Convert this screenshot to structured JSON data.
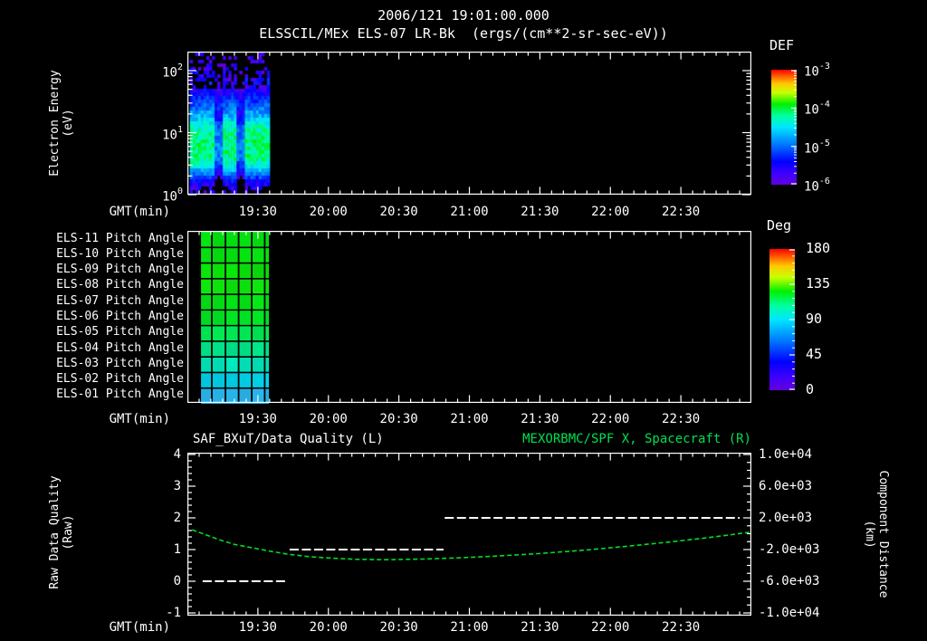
{
  "header": {
    "title": "2006/121 19:01:00.000",
    "subtitle": "ELSSCIL/MEx ELS-07 LR-Bk  (ergs/(cm**2-sr-sec-eV))"
  },
  "colors": {
    "background": "#000000",
    "foreground": "#ffffff",
    "title_green": "#00e050",
    "curve_green": "#00dd22",
    "rainbow_stops": [
      [
        0.0,
        "#6400dc"
      ],
      [
        0.1,
        "#3c00ff"
      ],
      [
        0.2,
        "#0000ff"
      ],
      [
        0.35,
        "#0078ff"
      ],
      [
        0.5,
        "#00e6ff"
      ],
      [
        0.6,
        "#00ffa0"
      ],
      [
        0.7,
        "#00f000"
      ],
      [
        0.8,
        "#c8ff00"
      ],
      [
        0.88,
        "#ffc800"
      ],
      [
        0.94,
        "#ff6400"
      ],
      [
        1.0,
        "#ff0000"
      ]
    ]
  },
  "time_axis": {
    "label": "GMT(min)",
    "start_time": "19:00",
    "end_time": "23:00",
    "major_labels": [
      "19:30",
      "20:00",
      "20:30",
      "21:00",
      "21:30",
      "22:00",
      "22:30"
    ],
    "major_minutes": [
      30,
      60,
      90,
      120,
      150,
      180,
      210
    ],
    "minor_step_min": 5,
    "total_minutes": 240
  },
  "chart_data": [
    {
      "type": "heatmap",
      "name": "electron-energy-spectrogram",
      "ylabel_lines": [
        "Electron Energy",
        "(eV)"
      ],
      "y_scale": "log",
      "y_ticks": [
        {
          "base": "10",
          "exp": "2",
          "logv": 2
        },
        {
          "base": "10",
          "exp": "1",
          "logv": 1
        },
        {
          "base": "10",
          "exp": "0",
          "logv": 0
        }
      ],
      "y_range_log": [
        0,
        2.3
      ],
      "colorbar": {
        "title": "DEF",
        "scale": "log",
        "tick_labels": [
          {
            "base": "10",
            "exp": "-3",
            "v": -3
          },
          {
            "base": "10",
            "exp": "-4",
            "v": -4
          },
          {
            "base": "10",
            "exp": "-5",
            "v": -5
          },
          {
            "base": "10",
            "exp": "-6",
            "v": -6
          }
        ],
        "range_log": [
          -6,
          -3
        ]
      },
      "data_coverage_min": [
        1,
        35
      ],
      "flux_profile_logE_logF": [
        [
          0.0,
          -6.2
        ],
        [
          0.15,
          -5.9
        ],
        [
          0.3,
          -5.3
        ],
        [
          0.45,
          -4.6
        ],
        [
          0.6,
          -4.25
        ],
        [
          0.9,
          -4.25
        ],
        [
          1.1,
          -4.45
        ],
        [
          1.3,
          -4.95
        ],
        [
          1.5,
          -5.4
        ],
        [
          1.7,
          -5.8
        ],
        [
          1.95,
          -6.1
        ],
        [
          2.3,
          -6.25
        ]
      ],
      "dropout_gaps_min": [
        [
          11.5,
          14.5
        ],
        [
          21.5,
          24.5
        ]
      ],
      "noise_amp": 0.5
    },
    {
      "type": "heatmap",
      "name": "pitch-angle-rows",
      "rows": [
        {
          "label": "ELS-11 Pitch Angle",
          "approx_deg": 102,
          "color": "#04df10"
        },
        {
          "label": "ELS-10 Pitch Angle",
          "approx_deg": 101,
          "color": "#04e010"
        },
        {
          "label": "ELS-09 Pitch Angle",
          "approx_deg": 100,
          "color": "#0ade0a"
        },
        {
          "label": "ELS-08 Pitch Angle",
          "approx_deg": 100,
          "color": "#0ce00c"
        },
        {
          "label": "ELS-07 Pitch Angle",
          "approx_deg": 99,
          "color": "#04e014"
        },
        {
          "label": "ELS-06 Pitch Angle",
          "approx_deg": 96,
          "color": "#00e122"
        },
        {
          "label": "ELS-05 Pitch Angle",
          "approx_deg": 90,
          "color": "#00e251"
        },
        {
          "label": "ELS-04 Pitch Angle",
          "approx_deg": 84,
          "color": "#00e287"
        },
        {
          "label": "ELS-03 Pitch Angle",
          "approx_deg": 75,
          "color": "#00e3b8"
        },
        {
          "label": "ELS-02 Pitch Angle",
          "approx_deg": 65,
          "color": "#00cde4"
        },
        {
          "label": "ELS-01 Pitch Angle",
          "approx_deg": 56,
          "color": "#28b2e8"
        }
      ],
      "colorbar": {
        "title": "Deg",
        "tick_labels": [
          "180",
          "135",
          "90",
          "45",
          "0"
        ],
        "tick_values": [
          180,
          135,
          90,
          45,
          0
        ],
        "range": [
          0,
          180
        ],
        "minor_step": 9
      },
      "data_coverage_min": [
        5.8,
        34.7
      ],
      "grid_col_bounds_min": [
        5.8,
        10.4,
        16.2,
        21.8,
        27.4,
        32.9,
        34.7
      ]
    },
    {
      "type": "line",
      "name": "quality-and-distance",
      "title_left": "SAF_BXuT/Data Quality (L)",
      "title_right": "MEXORBMC/SPF X, Spacecraft (R)",
      "ylabel_left_lines": [
        "Raw Data Quality",
        "(Raw)"
      ],
      "ylabel_right_lines": [
        "Component Distance",
        "(km)"
      ],
      "y_left": {
        "tick_labels": [
          "4",
          "3",
          "2",
          "1",
          "0",
          "-1"
        ],
        "tick_values": [
          4,
          3,
          2,
          1,
          0,
          -1
        ],
        "range": [
          -1,
          4
        ],
        "minor_step": 0.2
      },
      "y_right": {
        "tick_labels": [
          "1.0e+04",
          "6.0e+03",
          "2.0e+03",
          "-2.0e+03",
          "-6.0e+03",
          "-1.0e+04"
        ],
        "tick_values": [
          10000,
          6000,
          2000,
          -2000,
          -6000,
          -10000
        ],
        "range": [
          -10000,
          10000
        ],
        "minor_step": 1000
      },
      "series": [
        {
          "name": "Raw Data Quality",
          "style": "dashed-white",
          "axis": "left",
          "segments": [
            {
              "t": [
                6.5,
                42.8
              ],
              "v": 0
            },
            {
              "t": [
                43.5,
                109
              ],
              "v": 1
            },
            {
              "t": [
                109.5,
                235
              ],
              "v": 2
            }
          ]
        },
        {
          "name": "Spacecraft X Component Distance",
          "style": "dashed-green",
          "axis": "right",
          "points_min_km": [
            [
              2,
              500
            ],
            [
              8,
              -150
            ],
            [
              13,
              -700
            ],
            [
              20,
              -1350
            ],
            [
              28,
              -1800
            ],
            [
              36,
              -2250
            ],
            [
              43,
              -2600
            ],
            [
              52,
              -2900
            ],
            [
              62,
              -3100
            ],
            [
              72,
              -3230
            ],
            [
              85,
              -3280
            ],
            [
              100,
              -3200
            ],
            [
              115,
              -3050
            ],
            [
              130,
              -2850
            ],
            [
              150,
              -2500
            ],
            [
              170,
              -2050
            ],
            [
              190,
              -1500
            ],
            [
              205,
              -1050
            ],
            [
              220,
              -550
            ],
            [
              232,
              -100
            ],
            [
              239,
              180
            ]
          ]
        }
      ]
    }
  ]
}
